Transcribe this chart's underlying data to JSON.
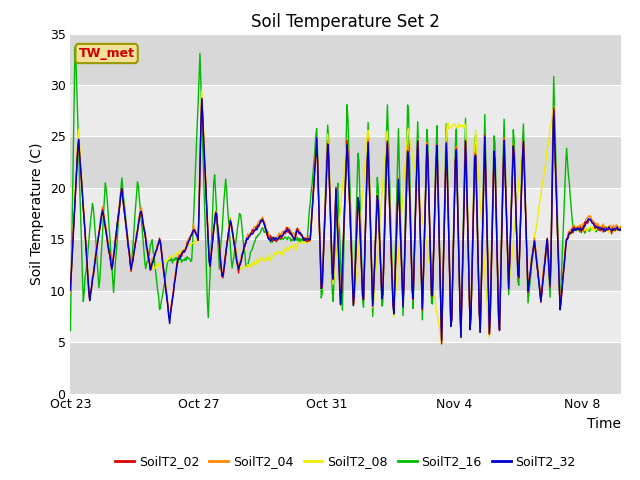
{
  "title": "Soil Temperature Set 2",
  "ylabel": "Soil Temperature (C)",
  "xlabel": "Time",
  "ylim": [
    0,
    35
  ],
  "xlim_days": 17.2,
  "annotation_text": "TW_met",
  "annotation_color": "#cc0000",
  "annotation_bg": "#f5e099",
  "annotation_edge": "#999900",
  "series_colors": [
    "#dd0000",
    "#ff8800",
    "#eeee00",
    "#00bb00",
    "#0000cc"
  ],
  "series_labels": [
    "SoilT2_02",
    "SoilT2_04",
    "SoilT2_08",
    "SoilT2_16",
    "SoilT2_32"
  ],
  "xtick_labels": [
    "Oct 23",
    "Oct 27",
    "Oct 31",
    "Nov 4",
    "Nov 8"
  ],
  "xtick_positions": [
    0,
    4,
    8,
    12,
    16
  ],
  "ytick_labels": [
    "0",
    "5",
    "10",
    "15",
    "20",
    "25",
    "30",
    "35"
  ],
  "ytick_positions": [
    0,
    5,
    10,
    15,
    20,
    25,
    30,
    35
  ],
  "bg_color": "#ffffff",
  "plot_bg_light": "#ebebeb",
  "plot_bg_dark": "#d8d8d8",
  "title_fontsize": 12,
  "axis_label_fontsize": 10,
  "tick_fontsize": 9,
  "legend_fontsize": 9,
  "line_width": 1.0
}
